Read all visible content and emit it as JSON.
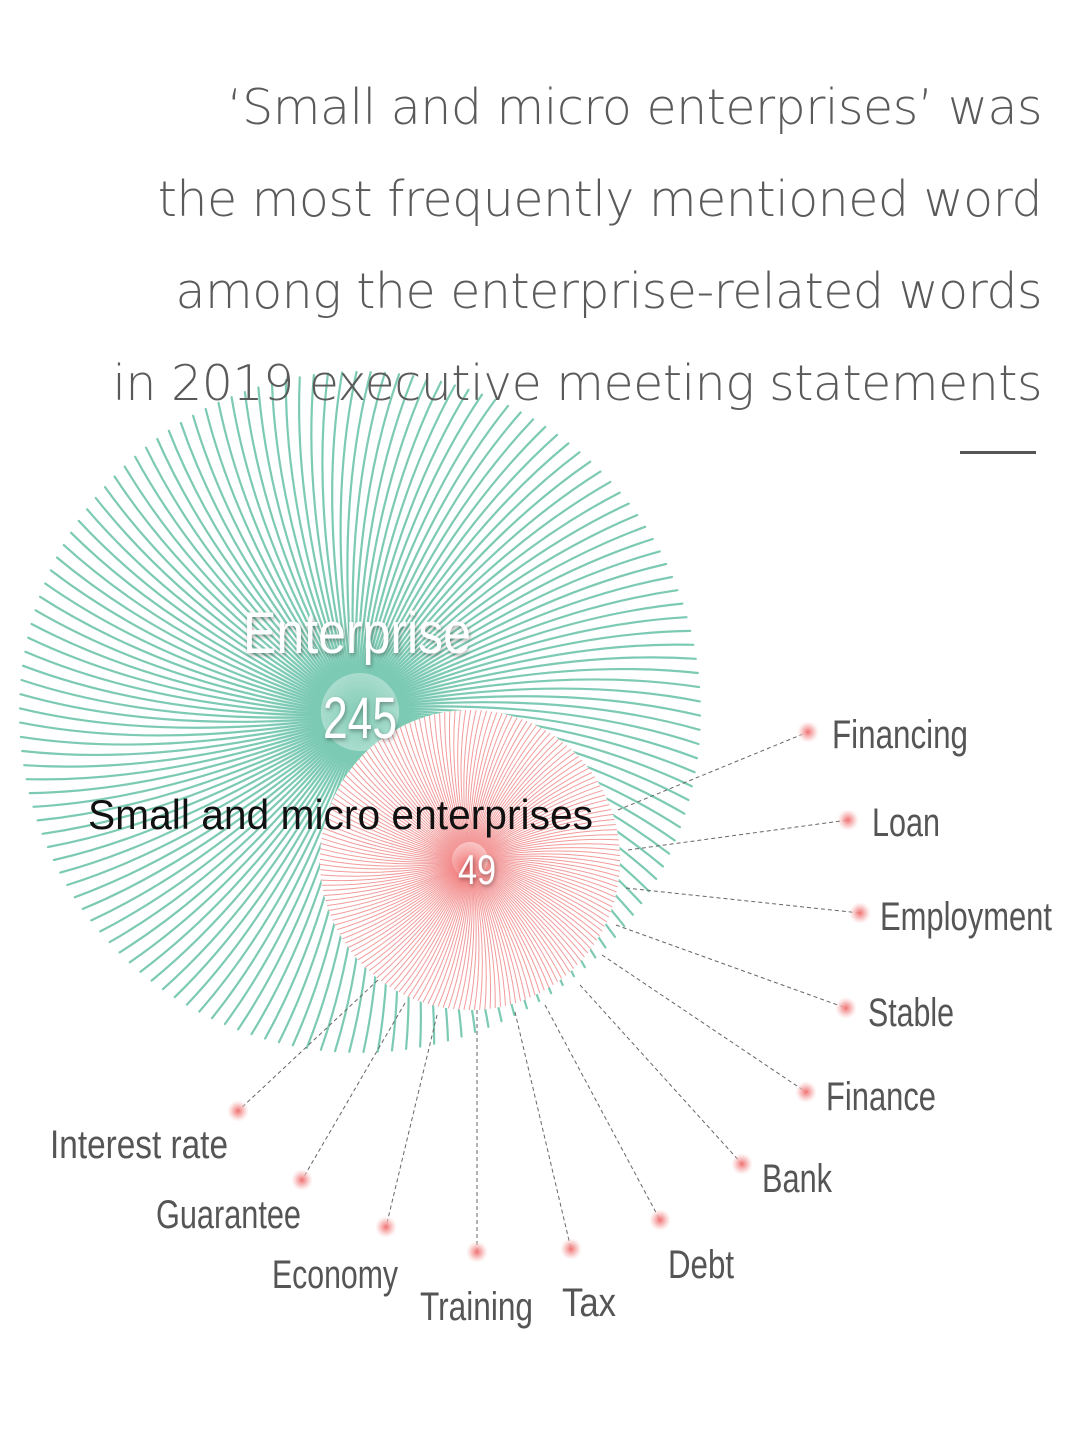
{
  "headline": {
    "lines": [
      "‘Small and micro enterprises’ was",
      "the most frequently mentioned word",
      "among the enterprise-related words",
      "in 2019 executive meeting statements"
    ]
  },
  "chart_data": {
    "type": "bubble",
    "main": {
      "label": "Enterprise",
      "value": 245,
      "color": "#7ccab3"
    },
    "sub": {
      "label": "Small and micro enterprises",
      "value": 49,
      "color": "#f08a8a"
    },
    "related_words": [
      "Financing",
      "Loan",
      "Employment",
      "Stable",
      "Finance",
      "Bank",
      "Debt",
      "Tax",
      "Training",
      "Economy",
      "Guarantee",
      "Interest rate"
    ],
    "colors": {
      "dot": "#f7b4b4",
      "leader": "#666666",
      "text": "#555555"
    }
  }
}
